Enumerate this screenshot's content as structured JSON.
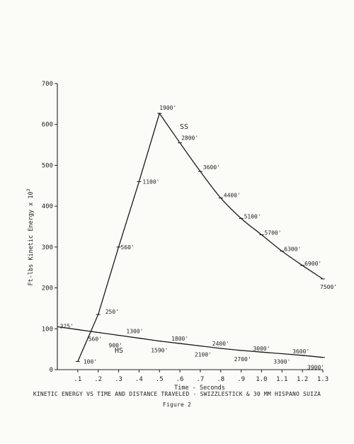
{
  "chart_data": {
    "type": "line",
    "title": "KINETIC ENERGY VS TIME AND DISTANCE TRAVELED - SWIZZLESTICK & 30 MM HISPANO SUIZA",
    "subtitle": "Figure 2",
    "xlabel": "Time - Seconds",
    "ylabel": "Ft-lbs Kinetic Energy x 10",
    "ylabel_exponent": "3",
    "xlim": [
      0,
      1.3
    ],
    "ylim": [
      0,
      700
    ],
    "x_ticks": [
      ".1",
      ".2",
      ".3",
      ".4",
      ".5",
      ".6",
      ".7",
      ".8",
      ".9",
      "1.0",
      "1.1",
      "1.2",
      "1.3"
    ],
    "y_ticks": [
      "0",
      "100",
      "200",
      "300",
      "400",
      "500",
      "600",
      "700"
    ],
    "grid": false,
    "series": [
      {
        "name": "SS",
        "x": [
          0.1,
          0.2,
          0.3,
          0.4,
          0.5,
          0.6,
          0.7,
          0.8,
          0.9,
          1.0,
          1.1,
          1.2,
          1.3
        ],
        "y": [
          20,
          135,
          300,
          460,
          627,
          555,
          485,
          420,
          370,
          330,
          290,
          255,
          222
        ],
        "labels": [
          "100'",
          "250'",
          "560'",
          "1100'",
          "1900'",
          "2800'",
          "3600'",
          "4400'",
          "5100'",
          "5700'",
          "6300'",
          "6900'",
          "7500'"
        ]
      },
      {
        "name": "HS",
        "x": [
          0.0,
          0.1,
          0.2,
          0.3,
          0.4,
          0.5,
          0.6,
          0.7,
          0.8,
          0.9,
          1.0,
          1.1,
          1.2,
          1.3
        ],
        "y": [
          105,
          98,
          91,
          84,
          77,
          70,
          64,
          58,
          52,
          47,
          43,
          39,
          35,
          30
        ],
        "labels": [
          "325'",
          "560'",
          "900'",
          "1300'",
          "1590'",
          "1800'",
          "2100'",
          "2400'",
          "2700'",
          "3000'",
          "3300'",
          "3600'",
          "3900'"
        ]
      }
    ]
  }
}
